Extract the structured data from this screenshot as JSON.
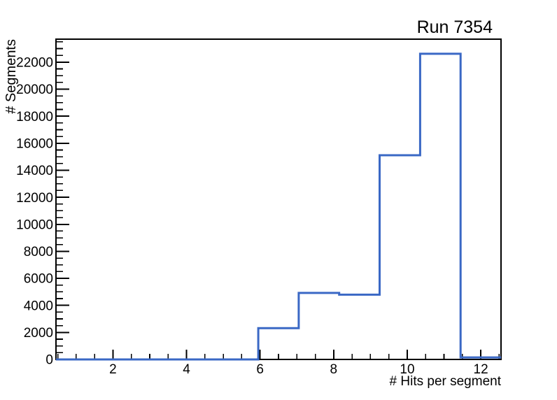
{
  "chart_data": {
    "type": "bar",
    "subtype": "step-histogram",
    "title": "Run 7354",
    "xlabel": "# Hits per segment",
    "ylabel": "# Segments",
    "xlim": [
      0.45,
      12.55
    ],
    "ylim": [
      0,
      23700
    ],
    "bin_edges": [
      0.45,
      1.55,
      2.65,
      3.75,
      4.85,
      5.95,
      7.05,
      8.15,
      9.25,
      10.35,
      11.45,
      12.55
    ],
    "values": [
      0,
      0,
      0,
      0,
      0,
      2320,
      4920,
      4790,
      15110,
      22620,
      150
    ],
    "x_major_ticks": [
      2,
      4,
      6,
      8,
      10,
      12
    ],
    "x_minor_step": 0.5,
    "y_major_ticks": [
      0,
      2000,
      4000,
      6000,
      8000,
      10000,
      12000,
      14000,
      16000,
      18000,
      20000,
      22000
    ],
    "y_minor_step": 500,
    "grid": false,
    "legend_position": "none",
    "colors": {
      "line": "#3a68c5",
      "axis": "#000000",
      "text": "#000000",
      "background": "#ffffff"
    }
  }
}
